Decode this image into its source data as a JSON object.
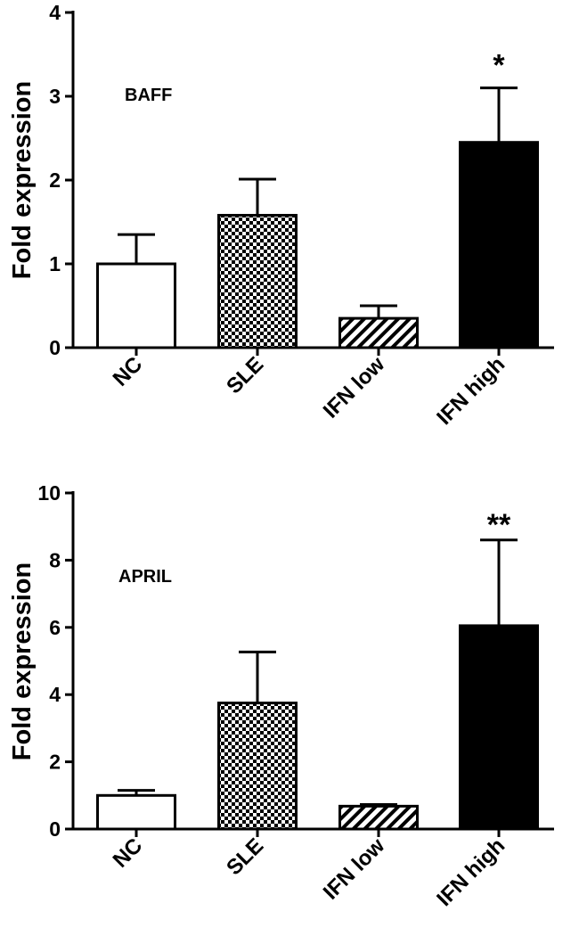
{
  "chart_data": [
    {
      "type": "bar",
      "annotation": "BAFF",
      "ylabel": "Fold expression",
      "categories": [
        "NC",
        "SLE",
        "IFN low",
        "IFN high"
      ],
      "values": [
        1.0,
        1.58,
        0.35,
        2.45
      ],
      "errors": [
        0.35,
        0.43,
        0.15,
        0.65
      ],
      "patterns": [
        "white",
        "checker",
        "hatch",
        "black"
      ],
      "significance": [
        "",
        "",
        "",
        "*"
      ],
      "ylim": [
        0,
        4
      ],
      "yticks": [
        "0",
        "1",
        "2",
        "3",
        "4"
      ]
    },
    {
      "type": "bar",
      "annotation": "APRIL",
      "ylabel": "Fold expression",
      "categories": [
        "NC",
        "SLE",
        "IFN low",
        "IFN high"
      ],
      "values": [
        1.0,
        3.75,
        0.68,
        6.05
      ],
      "errors": [
        0.15,
        1.52,
        0.05,
        2.55
      ],
      "patterns": [
        "white",
        "checker",
        "hatch",
        "black"
      ],
      "significance": [
        "",
        "",
        "",
        "**"
      ],
      "ylim": [
        0,
        10
      ],
      "yticks": [
        "0",
        "2",
        "4",
        "6",
        "8",
        "10"
      ]
    }
  ]
}
